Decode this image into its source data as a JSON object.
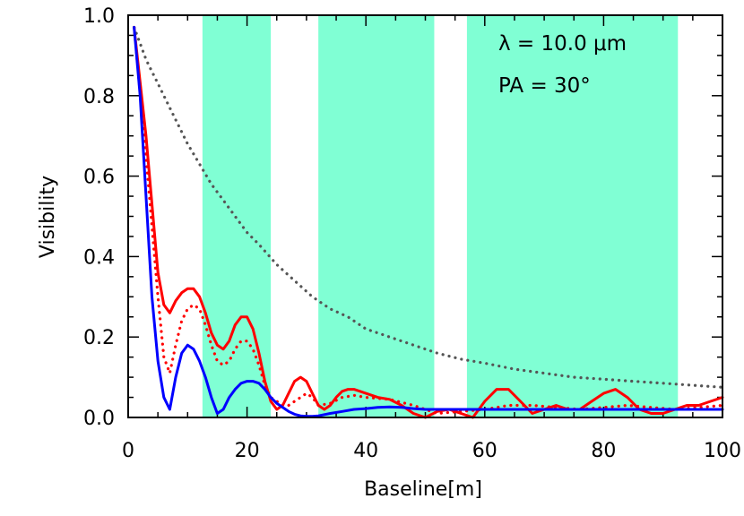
{
  "chart_data": {
    "type": "line",
    "xlabel": "Baseline[m]",
    "ylabel": "Visibility",
    "xlim": [
      0,
      100
    ],
    "ylim": [
      0,
      1.0
    ],
    "x_ticks": [
      0,
      20,
      40,
      60,
      80,
      100
    ],
    "x_tick_labels": [
      "0",
      "20",
      "40",
      "60",
      "80",
      "100"
    ],
    "y_ticks": [
      0.0,
      0.2,
      0.4,
      0.6,
      0.8,
      1.0
    ],
    "y_tick_labels": [
      "0.0",
      "0.2",
      "0.4",
      "0.6",
      "0.8",
      "1.0"
    ],
    "annotations": [
      "λ = 10.0 μm",
      "PA = 30°"
    ],
    "shaded_bands": [
      [
        12.5,
        24
      ],
      [
        32,
        51.5
      ],
      [
        57,
        92.5
      ]
    ],
    "band_color": "#80ffd4",
    "series": [
      {
        "color": "#ff0000",
        "style": "solid",
        "x": [
          1,
          3,
          5,
          6,
          7,
          8,
          9,
          10,
          11,
          12,
          13,
          14,
          15,
          16,
          17,
          18,
          19,
          20,
          21,
          22,
          23,
          24,
          25,
          26,
          27,
          28,
          29,
          30,
          31,
          32,
          33,
          34,
          35,
          36,
          37,
          38,
          39,
          40,
          42,
          44,
          46,
          48,
          50,
          52,
          54,
          56,
          58,
          60,
          62,
          64,
          66,
          68,
          70,
          72,
          74,
          76,
          78,
          80,
          82,
          84,
          86,
          88,
          90,
          92,
          94,
          96,
          98,
          100
        ],
        "y": [
          0.97,
          0.7,
          0.36,
          0.28,
          0.26,
          0.29,
          0.31,
          0.32,
          0.32,
          0.3,
          0.26,
          0.21,
          0.18,
          0.17,
          0.19,
          0.23,
          0.25,
          0.25,
          0.22,
          0.16,
          0.09,
          0.04,
          0.02,
          0.03,
          0.06,
          0.09,
          0.1,
          0.09,
          0.06,
          0.03,
          0.02,
          0.03,
          0.05,
          0.065,
          0.07,
          0.07,
          0.065,
          0.06,
          0.05,
          0.045,
          0.03,
          0.01,
          0.0,
          0.015,
          0.02,
          0.01,
          0.0,
          0.04,
          0.07,
          0.07,
          0.04,
          0.01,
          0.02,
          0.03,
          0.02,
          0.02,
          0.04,
          0.06,
          0.07,
          0.05,
          0.02,
          0.01,
          0.01,
          0.02,
          0.03,
          0.03,
          0.04,
          0.05
        ]
      },
      {
        "color": "#ff0000",
        "style": "dotted",
        "x": [
          1,
          3,
          5,
          6,
          7,
          8,
          9,
          10,
          11,
          12,
          13,
          14,
          15,
          16,
          17,
          18,
          19,
          20,
          21,
          22,
          23,
          24,
          25,
          26,
          27,
          28,
          29,
          30,
          31,
          32,
          34,
          36,
          38,
          40,
          44,
          48,
          52,
          56,
          60,
          64,
          68,
          72,
          76,
          80,
          84,
          88,
          92,
          96,
          100
        ],
        "y": [
          0.97,
          0.65,
          0.3,
          0.15,
          0.11,
          0.18,
          0.24,
          0.27,
          0.28,
          0.27,
          0.23,
          0.18,
          0.14,
          0.13,
          0.14,
          0.17,
          0.19,
          0.19,
          0.17,
          0.13,
          0.08,
          0.05,
          0.04,
          0.03,
          0.03,
          0.04,
          0.05,
          0.06,
          0.05,
          0.03,
          0.035,
          0.05,
          0.055,
          0.05,
          0.045,
          0.03,
          0.01,
          0.015,
          0.02,
          0.03,
          0.03,
          0.025,
          0.02,
          0.025,
          0.03,
          0.025,
          0.02,
          0.025,
          0.03
        ]
      },
      {
        "color": "#555555",
        "style": "dotted",
        "x": [
          1,
          2,
          3,
          4,
          5,
          6,
          7,
          8,
          10,
          12,
          14,
          16,
          18,
          20,
          22,
          25,
          28,
          31,
          34,
          37,
          40,
          44,
          48,
          52,
          56,
          60,
          65,
          70,
          75,
          80,
          85,
          90,
          95,
          100
        ],
        "y": [
          0.97,
          0.93,
          0.89,
          0.86,
          0.83,
          0.8,
          0.77,
          0.74,
          0.68,
          0.63,
          0.58,
          0.54,
          0.5,
          0.46,
          0.43,
          0.38,
          0.34,
          0.3,
          0.27,
          0.25,
          0.22,
          0.2,
          0.18,
          0.16,
          0.145,
          0.135,
          0.12,
          0.11,
          0.1,
          0.095,
          0.09,
          0.085,
          0.08,
          0.075
        ]
      },
      {
        "color": "#0000ff",
        "style": "solid",
        "x": [
          1,
          2,
          3,
          4,
          5,
          6,
          7,
          8,
          9,
          10,
          11,
          12,
          13,
          14,
          15,
          16,
          17,
          18,
          19,
          20,
          21,
          22,
          23,
          24,
          25,
          26,
          27,
          28,
          29,
          30,
          31,
          32,
          34,
          36,
          38,
          40,
          42,
          44,
          46,
          48,
          50,
          52,
          56,
          60,
          70,
          80,
          90,
          100
        ],
        "y": [
          0.97,
          0.8,
          0.55,
          0.3,
          0.14,
          0.05,
          0.02,
          0.1,
          0.16,
          0.18,
          0.17,
          0.14,
          0.1,
          0.05,
          0.01,
          0.02,
          0.05,
          0.07,
          0.085,
          0.09,
          0.09,
          0.085,
          0.07,
          0.05,
          0.035,
          0.025,
          0.015,
          0.008,
          0.004,
          0.003,
          0.003,
          0.004,
          0.01,
          0.015,
          0.02,
          0.022,
          0.025,
          0.026,
          0.025,
          0.022,
          0.02,
          0.02,
          0.02,
          0.02,
          0.02,
          0.02,
          0.02,
          0.02
        ]
      }
    ]
  }
}
